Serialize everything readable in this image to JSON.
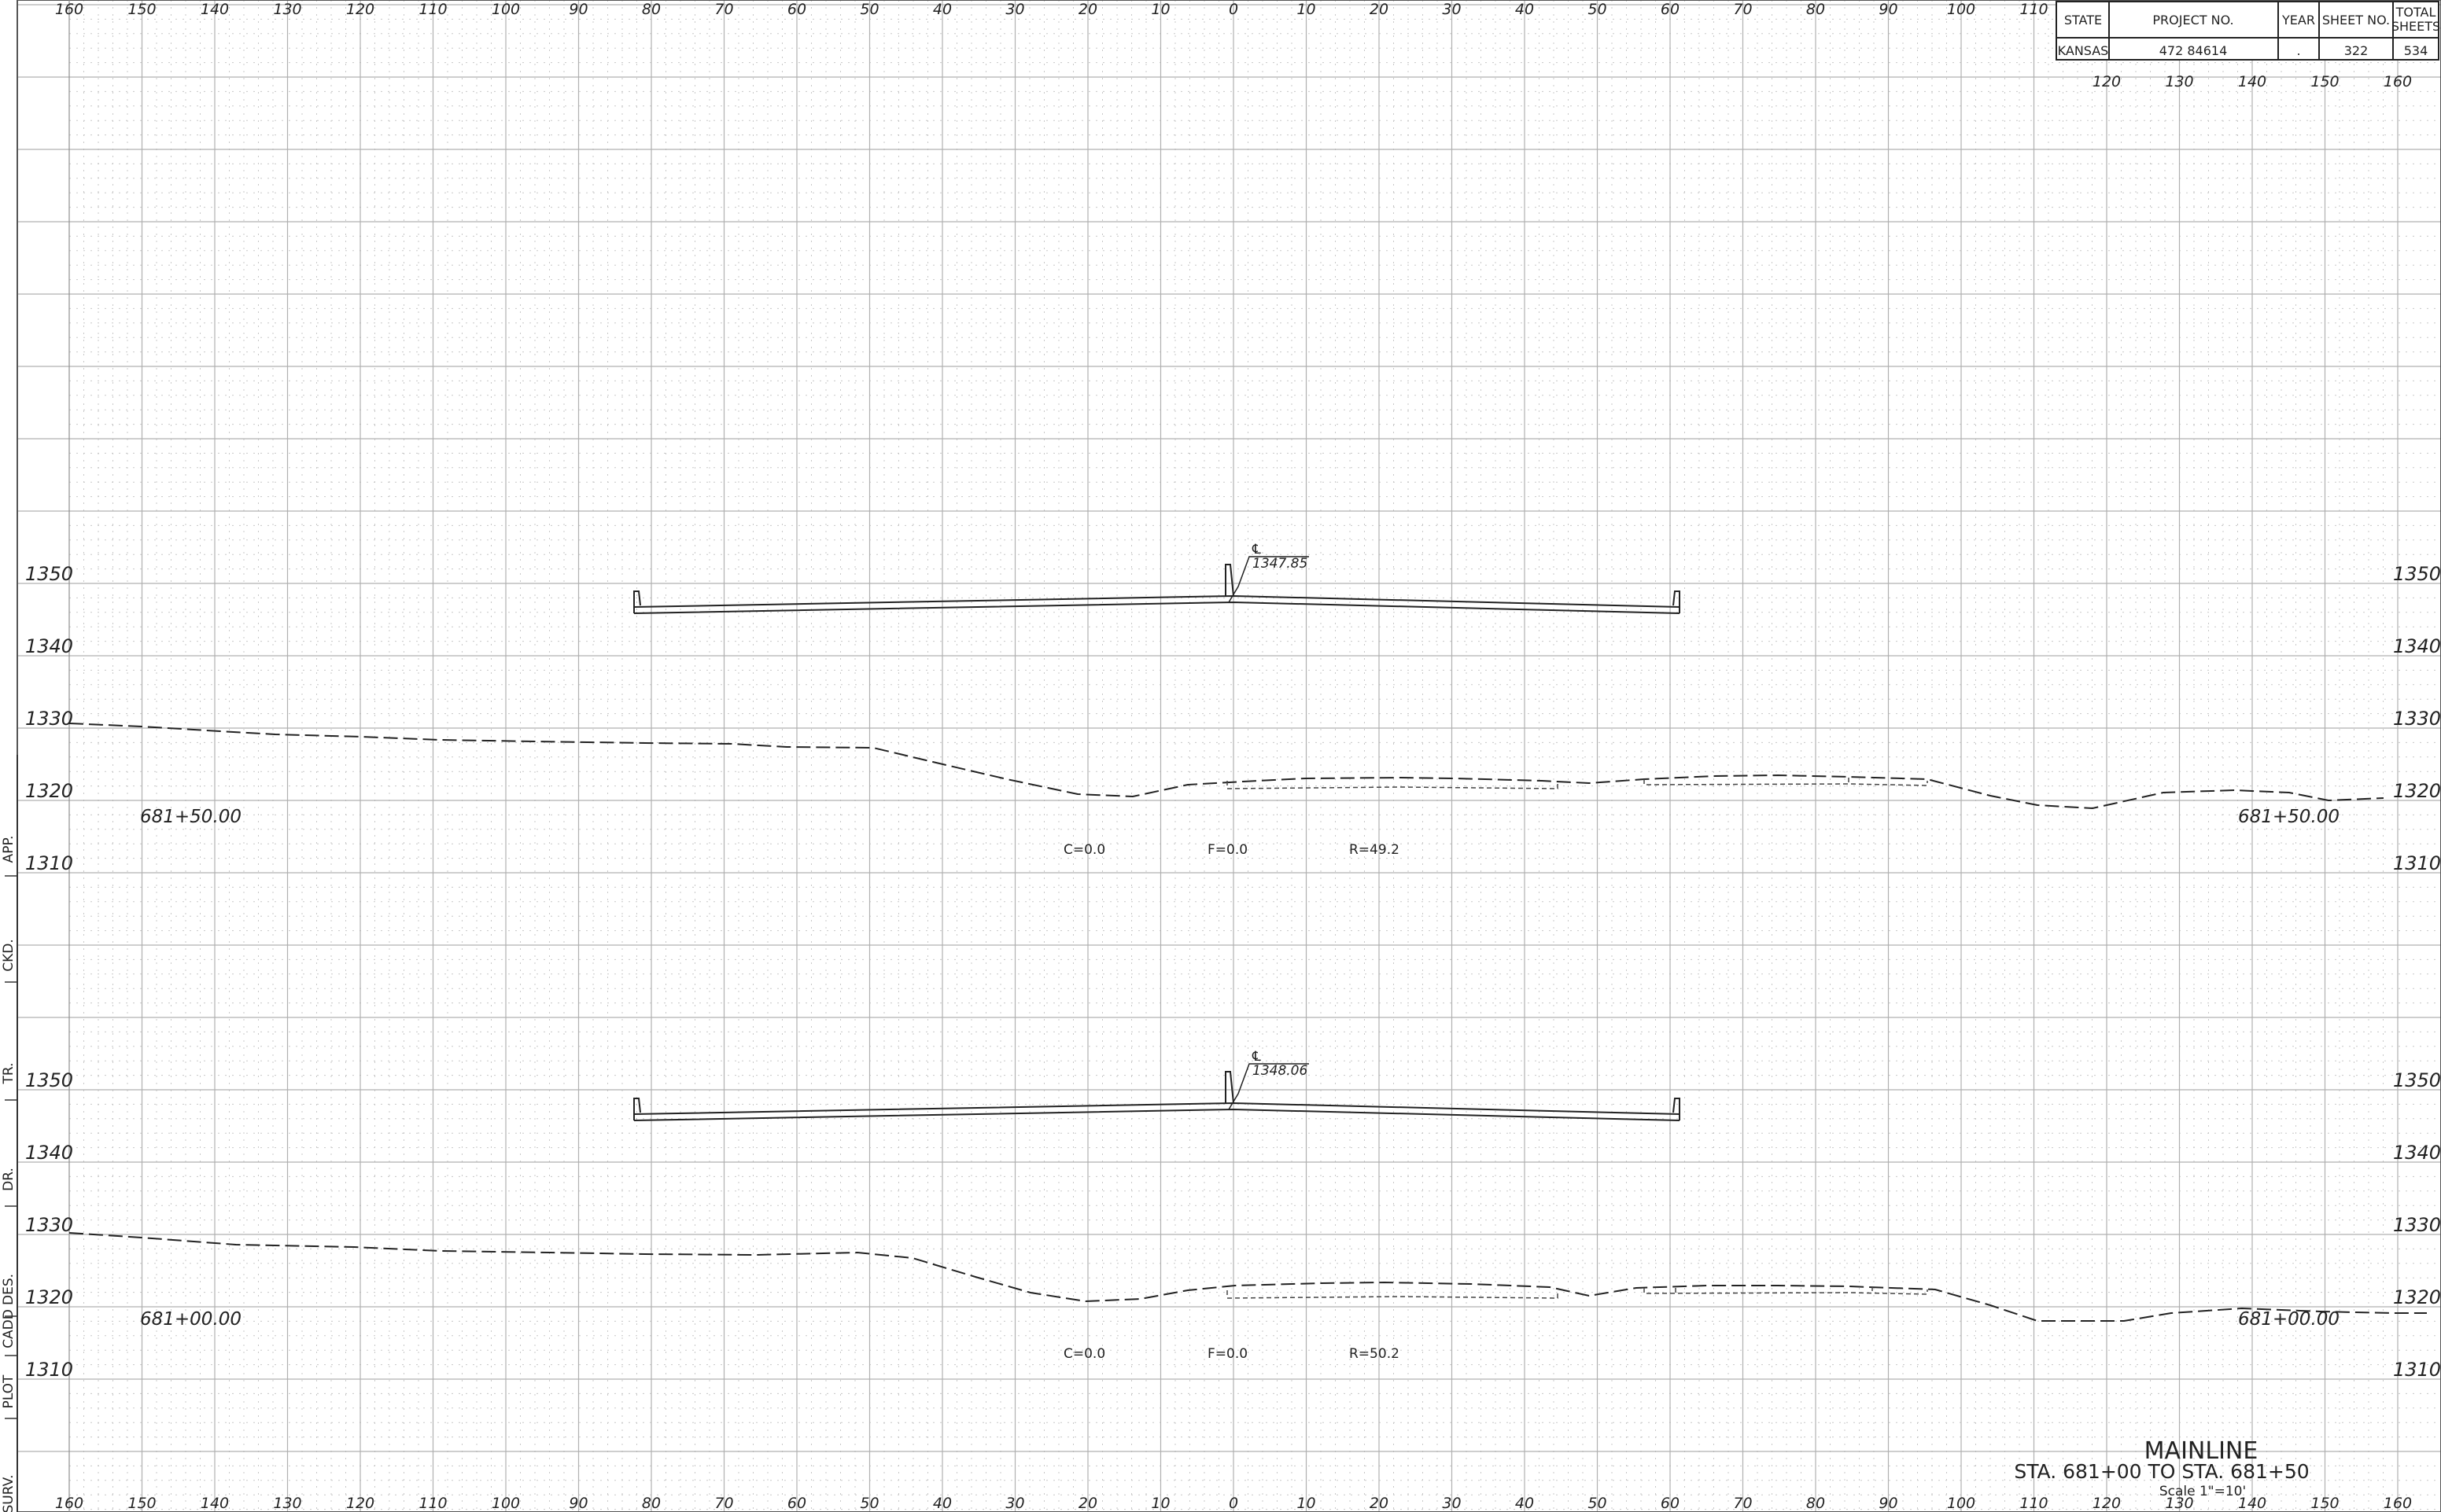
{
  "title_block": {
    "headers": [
      "STATE",
      "PROJECT NO.",
      "YEAR",
      "SHEET NO.",
      "TOTAL SHEETS"
    ],
    "values": [
      "KANSAS",
      "472 84614",
      ".",
      "322",
      "534"
    ]
  },
  "x_offsets": [
    "160",
    "150",
    "140",
    "130",
    "120",
    "110",
    "100",
    "90",
    "80",
    "70",
    "60",
    "50",
    "40",
    "30",
    "20",
    "10",
    "0",
    "10",
    "20",
    "30",
    "40",
    "50",
    "60",
    "70",
    "80",
    "90",
    "100",
    "110",
    "120",
    "130",
    "140",
    "150",
    "160"
  ],
  "top_right_ticks": [
    "120",
    "130",
    "140",
    "150",
    "160"
  ],
  "side_labels": [
    "SURV.",
    "PLOT",
    "CADD",
    "DES.",
    "DR.",
    "TR.",
    "CKD.",
    "APP."
  ],
  "sections": [
    {
      "station": "681+50.00",
      "elevations": [
        "1350",
        "1340",
        "1330",
        "1320",
        "1310"
      ],
      "cl_label": "℄",
      "cl_elevation": "1347.85",
      "c_label": "C=0.0",
      "f_label": "F=0.0",
      "r_label": "R=49.2"
    },
    {
      "station": "681+00.00",
      "elevations": [
        "1350",
        "1340",
        "1330",
        "1320",
        "1310"
      ],
      "cl_label": "℄",
      "cl_elevation": "1348.06",
      "c_label": "C=0.0",
      "f_label": "F=0.0",
      "r_label": "R=50.2"
    }
  ],
  "footer": {
    "title": "MAINLINE",
    "range": "STA. 681+00 TO STA. 681+50",
    "scale": "Scale 1\"=10'"
  }
}
